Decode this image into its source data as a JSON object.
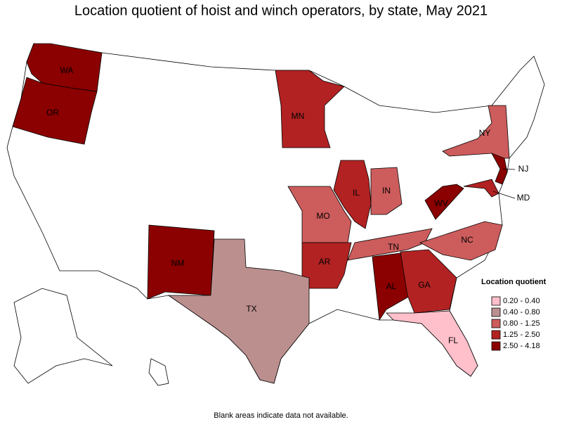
{
  "title": "Location quotient of hoist and winch operators, by state, May 2021",
  "legend": {
    "title": "Location quotient",
    "items": [
      {
        "label": "0.20 - 0.40",
        "color": "#ffc0cb"
      },
      {
        "label": "0.40 - 0.80",
        "color": "#bc8f8f"
      },
      {
        "label": "0.80 - 1.25",
        "color": "#cd5c5c"
      },
      {
        "label": "1.25 - 2.50",
        "color": "#b22222"
      },
      {
        "label": "2.50 - 4.18",
        "color": "#8b0000"
      }
    ]
  },
  "states": [
    {
      "label": "WA",
      "class": 4
    },
    {
      "label": "OR",
      "class": 4
    },
    {
      "label": "MN",
      "class": 3
    },
    {
      "label": "NY",
      "class": 2
    },
    {
      "label": "NJ",
      "class": 4
    },
    {
      "label": "MD",
      "class": 3
    },
    {
      "label": "WV",
      "class": 4
    },
    {
      "label": "IL",
      "class": 3
    },
    {
      "label": "IN",
      "class": 2
    },
    {
      "label": "MO",
      "class": 2
    },
    {
      "label": "AR",
      "class": 3
    },
    {
      "label": "TN",
      "class": 2
    },
    {
      "label": "NC",
      "class": 2
    },
    {
      "label": "NM",
      "class": 4
    },
    {
      "label": "TX",
      "class": 1
    },
    {
      "label": "AL",
      "class": 4
    },
    {
      "label": "GA",
      "class": 3
    },
    {
      "label": "FL",
      "class": 0
    }
  ],
  "note": "Blank areas indicate data not available."
}
